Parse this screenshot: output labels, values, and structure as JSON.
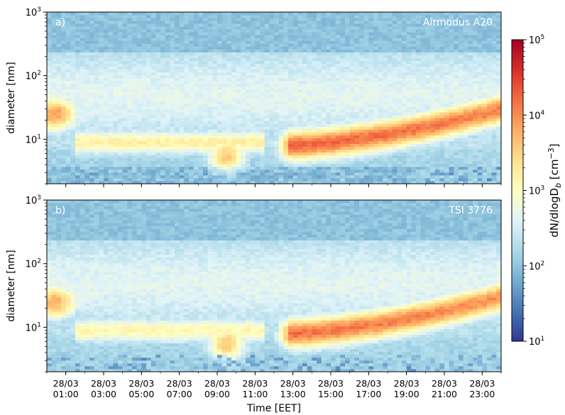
{
  "figure": {
    "colorbar": {
      "label": "dN/dlogD",
      "label_sub": "b",
      "label_unit": "[cm",
      "label_unit_sup": "−3",
      "label_unit_end": "]",
      "scale": "log",
      "range": [
        10,
        100000
      ],
      "ticks": [
        {
          "value": 10,
          "base": "10",
          "exp": "1"
        },
        {
          "value": 100,
          "base": "10",
          "exp": "2"
        },
        {
          "value": 1000,
          "base": "10",
          "exp": "3"
        },
        {
          "value": 10000,
          "base": "10",
          "exp": "4"
        },
        {
          "value": 100000,
          "base": "10",
          "exp": "5"
        }
      ],
      "colormap": "RdYlBu_r",
      "colors": [
        "#313695",
        "#4575b4",
        "#74add1",
        "#abd9e9",
        "#e0f3f8",
        "#ffffbf",
        "#fee090",
        "#fdae61",
        "#f46d43",
        "#d73027",
        "#a50026"
      ]
    },
    "xlabel": "Time [EET]",
    "xticks": [
      {
        "date": "28/03",
        "time": "01:00"
      },
      {
        "date": "28/03",
        "time": "03:00"
      },
      {
        "date": "28/03",
        "time": "05:00"
      },
      {
        "date": "28/03",
        "time": "07:00"
      },
      {
        "date": "28/03",
        "time": "09:00"
      },
      {
        "date": "28/03",
        "time": "11:00"
      },
      {
        "date": "28/03",
        "time": "13:00"
      },
      {
        "date": "28/03",
        "time": "15:00"
      },
      {
        "date": "28/03",
        "time": "17:00"
      },
      {
        "date": "28/03",
        "time": "19:00"
      },
      {
        "date": "28/03",
        "time": "21:00"
      },
      {
        "date": "28/03",
        "time": "23:00"
      }
    ]
  },
  "chart_data": [
    {
      "type": "heatmap",
      "panel_label": "a)",
      "instrument": "Airmodus A20",
      "ylabel": "diameter [nm]",
      "yscale": "log",
      "ylim": [
        2,
        1000
      ],
      "yticks": [
        {
          "value": 10,
          "base": "10",
          "exp": "1"
        },
        {
          "value": 100,
          "base": "10",
          "exp": "2"
        },
        {
          "value": 1000,
          "base": "10",
          "exp": "3"
        }
      ],
      "x_time_range_hours": [
        0,
        24
      ],
      "color_value": "dN/dlogDb [cm^-3]",
      "features": {
        "background_upper_log10": 2.2,
        "large_particle_cutoff_nm": 300,
        "morning_mode": {
          "hours": [
            0,
            1.5
          ],
          "diameter_nm": 25,
          "log10_conc": 3.9
        },
        "night_mode": {
          "hours": [
            2,
            9
          ],
          "diameter_nm": 9,
          "log10_conc": 3.2
        },
        "growth_event": {
          "start_hour": 12.5,
          "diameter_start_nm": 8,
          "diameter_end_nm": 30,
          "log10_conc_peak": 4.3
        }
      }
    },
    {
      "type": "heatmap",
      "panel_label": "b)",
      "instrument": "TSI 3776",
      "ylabel": "diameter [nm]",
      "yscale": "log",
      "ylim": [
        2,
        1000
      ],
      "yticks": [
        {
          "value": 10,
          "base": "10",
          "exp": "1"
        },
        {
          "value": 100,
          "base": "10",
          "exp": "2"
        },
        {
          "value": 1000,
          "base": "10",
          "exp": "3"
        }
      ],
      "x_time_range_hours": [
        0,
        24
      ],
      "color_value": "dN/dlogDb [cm^-3]",
      "features": {
        "background_upper_log10": 2.2,
        "large_particle_cutoff_nm": 300,
        "morning_mode": {
          "hours": [
            0,
            1.5
          ],
          "diameter_nm": 25,
          "log10_conc": 3.8
        },
        "night_mode": {
          "hours": [
            2,
            9
          ],
          "diameter_nm": 9,
          "log10_conc": 3.1
        },
        "growth_event": {
          "start_hour": 12.5,
          "diameter_start_nm": 8,
          "diameter_end_nm": 30,
          "log10_conc_peak": 4.2
        }
      }
    }
  ]
}
